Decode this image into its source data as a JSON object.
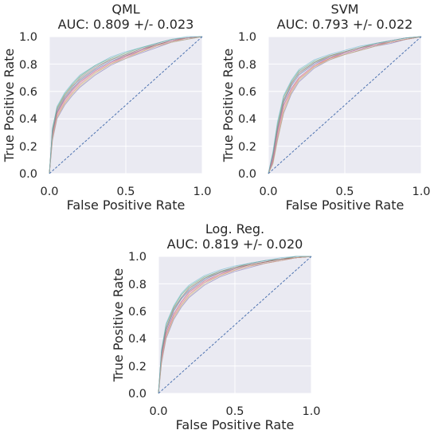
{
  "colors": {
    "background": "#eaeaf2",
    "grid": "#ffffff",
    "diagonal": "#4c72b0",
    "curves": [
      "#4c72b0",
      "#dd8452",
      "#55a868",
      "#c44e52",
      "#8172b3",
      "#937860",
      "#da8bc3",
      "#8c8c8c",
      "#ccb974",
      "#64b5cd"
    ]
  },
  "chart_data": [
    {
      "type": "line",
      "title": "QML",
      "subtitle": "AUC: 0.809 +/- 0.023",
      "xlabel": "False Positive Rate",
      "ylabel": "True Positive Rate",
      "xlim": [
        0,
        1
      ],
      "ylim": [
        0,
        1
      ],
      "xticks": [
        "0.0",
        "0.5",
        "1.0"
      ],
      "yticks": [
        "0.0",
        "0.2",
        "0.4",
        "0.6",
        "0.8",
        "1.0"
      ],
      "grid": true,
      "diagonal": [
        [
          0,
          0
        ],
        [
          1,
          1
        ]
      ],
      "series": [
        {
          "x": [
            0,
            0.02,
            0.05,
            0.1,
            0.15,
            0.2,
            0.3,
            0.4,
            0.5,
            0.6,
            0.7,
            0.8,
            0.9,
            1
          ],
          "y": [
            0,
            0.3,
            0.45,
            0.55,
            0.62,
            0.68,
            0.76,
            0.82,
            0.86,
            0.9,
            0.94,
            0.97,
            0.99,
            1
          ]
        },
        {
          "x": [
            0,
            0.02,
            0.05,
            0.1,
            0.15,
            0.2,
            0.3,
            0.4,
            0.5,
            0.6,
            0.7,
            0.8,
            0.9,
            1
          ],
          "y": [
            0,
            0.26,
            0.42,
            0.52,
            0.59,
            0.65,
            0.74,
            0.8,
            0.85,
            0.89,
            0.93,
            0.96,
            0.99,
            1
          ]
        },
        {
          "x": [
            0,
            0.02,
            0.05,
            0.1,
            0.15,
            0.2,
            0.3,
            0.4,
            0.5,
            0.6,
            0.7,
            0.8,
            0.9,
            1
          ],
          "y": [
            0,
            0.33,
            0.48,
            0.58,
            0.65,
            0.71,
            0.79,
            0.84,
            0.88,
            0.92,
            0.95,
            0.98,
            0.99,
            1
          ]
        },
        {
          "x": [
            0,
            0.02,
            0.05,
            0.1,
            0.15,
            0.2,
            0.3,
            0.4,
            0.5,
            0.6,
            0.7,
            0.8,
            0.9,
            1
          ],
          "y": [
            0,
            0.28,
            0.44,
            0.54,
            0.61,
            0.67,
            0.75,
            0.81,
            0.86,
            0.9,
            0.94,
            0.97,
            0.99,
            1
          ]
        },
        {
          "x": [
            0,
            0.02,
            0.05,
            0.1,
            0.15,
            0.2,
            0.3,
            0.4,
            0.5,
            0.6,
            0.7,
            0.8,
            0.9,
            1
          ],
          "y": [
            0,
            0.24,
            0.4,
            0.5,
            0.57,
            0.63,
            0.72,
            0.79,
            0.84,
            0.88,
            0.92,
            0.96,
            0.98,
            1
          ]
        },
        {
          "x": [
            0,
            0.02,
            0.05,
            0.1,
            0.15,
            0.2,
            0.3,
            0.4,
            0.5,
            0.6,
            0.7,
            0.8,
            0.9,
            1
          ],
          "y": [
            0,
            0.31,
            0.47,
            0.57,
            0.64,
            0.69,
            0.77,
            0.83,
            0.87,
            0.91,
            0.94,
            0.97,
            0.99,
            1
          ]
        },
        {
          "x": [
            0,
            0.02,
            0.05,
            0.1,
            0.15,
            0.2,
            0.3,
            0.4,
            0.5,
            0.6,
            0.7,
            0.8,
            0.9,
            1
          ],
          "y": [
            0,
            0.27,
            0.43,
            0.53,
            0.6,
            0.66,
            0.75,
            0.81,
            0.85,
            0.9,
            0.93,
            0.97,
            0.99,
            1
          ]
        },
        {
          "x": [
            0,
            0.02,
            0.05,
            0.1,
            0.15,
            0.2,
            0.3,
            0.4,
            0.5,
            0.6,
            0.7,
            0.8,
            0.9,
            1
          ],
          "y": [
            0,
            0.29,
            0.46,
            0.56,
            0.63,
            0.7,
            0.78,
            0.83,
            0.87,
            0.91,
            0.95,
            0.98,
            0.99,
            1
          ]
        },
        {
          "x": [
            0,
            0.02,
            0.05,
            0.1,
            0.15,
            0.2,
            0.3,
            0.4,
            0.5,
            0.6,
            0.7,
            0.8,
            0.9,
            1
          ],
          "y": [
            0,
            0.25,
            0.41,
            0.51,
            0.58,
            0.64,
            0.73,
            0.8,
            0.84,
            0.89,
            0.93,
            0.96,
            0.98,
            1
          ]
        },
        {
          "x": [
            0,
            0.02,
            0.05,
            0.1,
            0.15,
            0.2,
            0.3,
            0.4,
            0.5,
            0.6,
            0.7,
            0.8,
            0.9,
            1
          ],
          "y": [
            0,
            0.32,
            0.49,
            0.59,
            0.66,
            0.72,
            0.79,
            0.85,
            0.89,
            0.92,
            0.95,
            0.98,
            1,
            1
          ]
        }
      ]
    },
    {
      "type": "line",
      "title": "SVM",
      "subtitle": "AUC: 0.793 +/- 0.022",
      "xlabel": "False Positive Rate",
      "ylabel": "True Positive Rate",
      "xlim": [
        0,
        1
      ],
      "ylim": [
        0,
        1
      ],
      "xticks": [
        "0.0",
        "0.5",
        "1.0"
      ],
      "yticks": [
        "0.0",
        "0.2",
        "0.4",
        "0.6",
        "0.8",
        "1.0"
      ],
      "grid": true,
      "diagonal": [
        [
          0,
          0
        ],
        [
          1,
          1
        ]
      ],
      "series": [
        {
          "x": [
            0,
            0.03,
            0.06,
            0.1,
            0.15,
            0.2,
            0.3,
            0.4,
            0.5,
            0.6,
            0.7,
            0.8,
            0.9,
            1
          ],
          "y": [
            0,
            0.12,
            0.32,
            0.52,
            0.64,
            0.72,
            0.8,
            0.85,
            0.88,
            0.91,
            0.94,
            0.96,
            0.98,
            1
          ]
        },
        {
          "x": [
            0,
            0.03,
            0.06,
            0.1,
            0.15,
            0.2,
            0.3,
            0.4,
            0.5,
            0.6,
            0.7,
            0.8,
            0.9,
            1
          ],
          "y": [
            0,
            0.09,
            0.27,
            0.47,
            0.6,
            0.69,
            0.78,
            0.84,
            0.87,
            0.9,
            0.93,
            0.96,
            0.98,
            1
          ]
        },
        {
          "x": [
            0,
            0.03,
            0.06,
            0.1,
            0.15,
            0.2,
            0.3,
            0.4,
            0.5,
            0.6,
            0.7,
            0.8,
            0.9,
            1
          ],
          "y": [
            0,
            0.15,
            0.36,
            0.56,
            0.67,
            0.75,
            0.82,
            0.86,
            0.89,
            0.92,
            0.95,
            0.97,
            0.99,
            1
          ]
        },
        {
          "x": [
            0,
            0.03,
            0.06,
            0.1,
            0.15,
            0.2,
            0.3,
            0.4,
            0.5,
            0.6,
            0.7,
            0.8,
            0.9,
            1
          ],
          "y": [
            0,
            0.1,
            0.3,
            0.5,
            0.62,
            0.7,
            0.79,
            0.84,
            0.88,
            0.91,
            0.94,
            0.96,
            0.98,
            1
          ]
        },
        {
          "x": [
            0,
            0.03,
            0.06,
            0.1,
            0.15,
            0.2,
            0.3,
            0.4,
            0.5,
            0.6,
            0.7,
            0.8,
            0.9,
            1
          ],
          "y": [
            0,
            0.08,
            0.25,
            0.44,
            0.58,
            0.67,
            0.77,
            0.83,
            0.87,
            0.9,
            0.93,
            0.95,
            0.98,
            1
          ]
        },
        {
          "x": [
            0,
            0.03,
            0.06,
            0.1,
            0.15,
            0.2,
            0.3,
            0.4,
            0.5,
            0.6,
            0.7,
            0.8,
            0.9,
            1
          ],
          "y": [
            0,
            0.14,
            0.34,
            0.54,
            0.66,
            0.73,
            0.81,
            0.86,
            0.89,
            0.92,
            0.94,
            0.97,
            0.99,
            1
          ]
        },
        {
          "x": [
            0,
            0.03,
            0.06,
            0.1,
            0.15,
            0.2,
            0.3,
            0.4,
            0.5,
            0.6,
            0.7,
            0.8,
            0.9,
            1
          ],
          "y": [
            0,
            0.11,
            0.29,
            0.49,
            0.61,
            0.7,
            0.79,
            0.85,
            0.88,
            0.91,
            0.94,
            0.96,
            0.98,
            1
          ]
        },
        {
          "x": [
            0,
            0.03,
            0.06,
            0.1,
            0.15,
            0.2,
            0.3,
            0.4,
            0.5,
            0.6,
            0.7,
            0.8,
            0.9,
            1
          ],
          "y": [
            0,
            0.13,
            0.33,
            0.53,
            0.65,
            0.74,
            0.81,
            0.85,
            0.89,
            0.92,
            0.95,
            0.97,
            0.99,
            1
          ]
        },
        {
          "x": [
            0,
            0.03,
            0.06,
            0.1,
            0.15,
            0.2,
            0.3,
            0.4,
            0.5,
            0.6,
            0.7,
            0.8,
            0.9,
            1
          ],
          "y": [
            0,
            0.07,
            0.24,
            0.45,
            0.59,
            0.68,
            0.78,
            0.83,
            0.87,
            0.9,
            0.93,
            0.96,
            0.98,
            1
          ]
        },
        {
          "x": [
            0,
            0.03,
            0.06,
            0.1,
            0.15,
            0.2,
            0.3,
            0.4,
            0.5,
            0.6,
            0.7,
            0.8,
            0.9,
            1
          ],
          "y": [
            0,
            0.16,
            0.38,
            0.57,
            0.68,
            0.76,
            0.83,
            0.87,
            0.9,
            0.93,
            0.95,
            0.97,
            0.99,
            1
          ]
        }
      ]
    },
    {
      "type": "line",
      "title": "Log. Reg.",
      "subtitle": "AUC: 0.819 +/- 0.020",
      "xlabel": "False Positive Rate",
      "ylabel": "True Positive Rate",
      "xlim": [
        0,
        1
      ],
      "ylim": [
        0,
        1
      ],
      "xticks": [
        "0.0",
        "0.5",
        "1.0"
      ],
      "yticks": [
        "0.0",
        "0.2",
        "0.4",
        "0.6",
        "0.8",
        "1.0"
      ],
      "grid": true,
      "diagonal": [
        [
          0,
          0
        ],
        [
          1,
          1
        ]
      ],
      "series": [
        {
          "x": [
            0,
            0.02,
            0.05,
            0.1,
            0.15,
            0.2,
            0.3,
            0.4,
            0.5,
            0.6,
            0.7,
            0.8,
            0.9,
            1
          ],
          "y": [
            0,
            0.28,
            0.46,
            0.6,
            0.69,
            0.75,
            0.83,
            0.88,
            0.91,
            0.94,
            0.96,
            0.98,
            0.99,
            1
          ]
        },
        {
          "x": [
            0,
            0.02,
            0.05,
            0.1,
            0.15,
            0.2,
            0.3,
            0.4,
            0.5,
            0.6,
            0.7,
            0.8,
            0.9,
            1
          ],
          "y": [
            0,
            0.24,
            0.42,
            0.56,
            0.65,
            0.72,
            0.81,
            0.86,
            0.9,
            0.93,
            0.95,
            0.97,
            0.99,
            1
          ]
        },
        {
          "x": [
            0,
            0.02,
            0.05,
            0.1,
            0.15,
            0.2,
            0.3,
            0.4,
            0.5,
            0.6,
            0.7,
            0.8,
            0.9,
            1
          ],
          "y": [
            0,
            0.31,
            0.5,
            0.63,
            0.72,
            0.78,
            0.85,
            0.89,
            0.92,
            0.95,
            0.97,
            0.98,
            1,
            1
          ]
        },
        {
          "x": [
            0,
            0.02,
            0.05,
            0.1,
            0.15,
            0.2,
            0.3,
            0.4,
            0.5,
            0.6,
            0.7,
            0.8,
            0.9,
            1
          ],
          "y": [
            0,
            0.26,
            0.44,
            0.58,
            0.67,
            0.74,
            0.82,
            0.87,
            0.91,
            0.94,
            0.96,
            0.98,
            0.99,
            1
          ]
        },
        {
          "x": [
            0,
            0.02,
            0.05,
            0.1,
            0.15,
            0.2,
            0.3,
            0.4,
            0.5,
            0.6,
            0.7,
            0.8,
            0.9,
            1
          ],
          "y": [
            0,
            0.22,
            0.4,
            0.54,
            0.63,
            0.7,
            0.79,
            0.85,
            0.89,
            0.92,
            0.95,
            0.97,
            0.99,
            1
          ]
        },
        {
          "x": [
            0,
            0.02,
            0.05,
            0.1,
            0.15,
            0.2,
            0.3,
            0.4,
            0.5,
            0.6,
            0.7,
            0.8,
            0.9,
            1
          ],
          "y": [
            0,
            0.3,
            0.48,
            0.62,
            0.7,
            0.77,
            0.84,
            0.88,
            0.92,
            0.94,
            0.96,
            0.98,
            0.99,
            1
          ]
        },
        {
          "x": [
            0,
            0.02,
            0.05,
            0.1,
            0.15,
            0.2,
            0.3,
            0.4,
            0.5,
            0.6,
            0.7,
            0.8,
            0.9,
            1
          ],
          "y": [
            0,
            0.25,
            0.43,
            0.57,
            0.66,
            0.73,
            0.81,
            0.87,
            0.9,
            0.93,
            0.95,
            0.97,
            0.99,
            1
          ]
        },
        {
          "x": [
            0,
            0.02,
            0.05,
            0.1,
            0.15,
            0.2,
            0.3,
            0.4,
            0.5,
            0.6,
            0.7,
            0.8,
            0.9,
            1
          ],
          "y": [
            0,
            0.29,
            0.47,
            0.61,
            0.7,
            0.76,
            0.84,
            0.89,
            0.92,
            0.95,
            0.97,
            0.98,
            1,
            1
          ]
        },
        {
          "x": [
            0,
            0.02,
            0.05,
            0.1,
            0.15,
            0.2,
            0.3,
            0.4,
            0.5,
            0.6,
            0.7,
            0.8,
            0.9,
            1
          ],
          "y": [
            0,
            0.23,
            0.41,
            0.55,
            0.64,
            0.71,
            0.8,
            0.86,
            0.9,
            0.93,
            0.95,
            0.97,
            0.99,
            1
          ]
        },
        {
          "x": [
            0,
            0.02,
            0.05,
            0.1,
            0.15,
            0.2,
            0.3,
            0.4,
            0.5,
            0.6,
            0.7,
            0.8,
            0.9,
            1
          ],
          "y": [
            0,
            0.32,
            0.51,
            0.64,
            0.73,
            0.79,
            0.86,
            0.9,
            0.93,
            0.95,
            0.97,
            0.99,
            1,
            1
          ]
        }
      ]
    }
  ]
}
